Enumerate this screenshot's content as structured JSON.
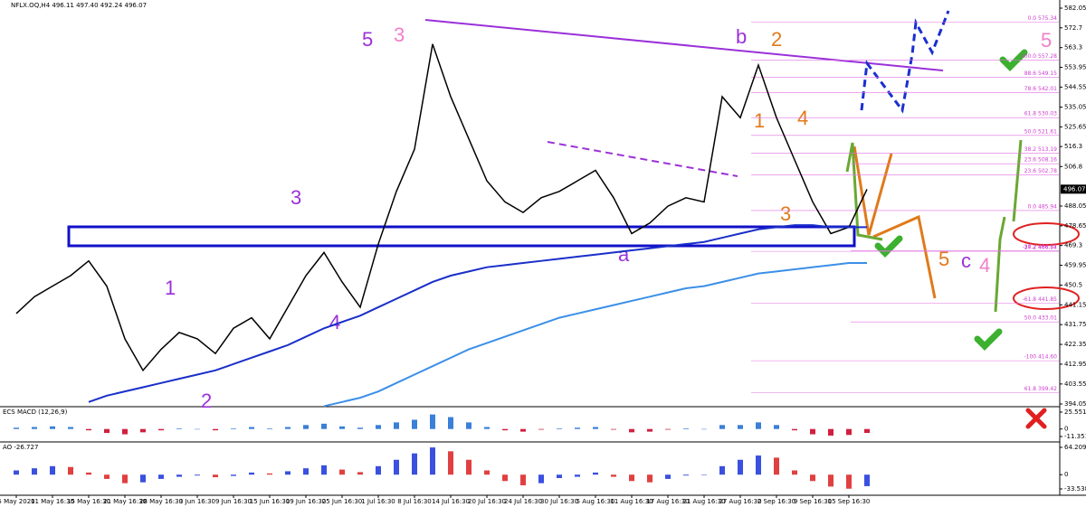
{
  "chart_data": {
    "type": "line",
    "title": "NFLX.OQ,H4  496.11 497.40 492.24 496.07",
    "categories": [
      "5 May 2020",
      null,
      "11 May 16:30",
      null,
      "15 May 16:30",
      null,
      "21 May 16:30",
      null,
      "28 May 16:30",
      null,
      "3 Jun 16:30",
      null,
      "9 Jun 16:30",
      null,
      "15 Jun 16:30",
      null,
      "19 Jun 16:30",
      null,
      "25 Jun 16:30",
      null,
      "1 Jul 16:30",
      null,
      "8 Jul 16:30",
      null,
      "14 Jul 16:30",
      null,
      "20 Jul 16:30",
      null,
      "24 Jul 16:30",
      null,
      "30 Jul 16:30",
      null,
      "5 Aug 16:30",
      null,
      "11 Aug 16:30",
      null,
      "17 Aug 16:30",
      null,
      "21 Aug 16:30",
      null,
      "27 Aug 16:30",
      null,
      "2 Sep 16:30",
      null,
      "9 Sep 16:30",
      null,
      "15 Sep 16:30",
      null
    ],
    "series": [
      {
        "color": "#000000",
        "values": [
          437,
          445,
          450,
          455,
          462,
          450,
          425,
          410,
          420,
          428,
          425,
          418,
          430,
          435,
          425,
          440,
          455,
          466,
          452,
          440,
          470,
          495,
          515,
          565,
          540,
          520,
          500,
          490,
          485,
          492,
          495,
          500,
          505,
          492,
          475,
          480,
          488,
          492,
          490,
          540,
          530,
          555,
          530,
          510,
          490,
          475,
          478,
          496
        ]
      },
      {
        "color": "#1a2fc9",
        "values": [
          null,
          null,
          null,
          null,
          395,
          398,
          400,
          402,
          404,
          406,
          408,
          410,
          413,
          416,
          419,
          422,
          426,
          430,
          433,
          436,
          440,
          444,
          448,
          452,
          455,
          457,
          459,
          460,
          461,
          462,
          463,
          464,
          465,
          466,
          467,
          468,
          469,
          470,
          471,
          473,
          475,
          477,
          478,
          479,
          479,
          478,
          478,
          478
        ]
      },
      {
        "color": "#3b8fe8",
        "values": [
          null,
          null,
          null,
          null,
          null,
          null,
          null,
          null,
          null,
          null,
          null,
          null,
          null,
          null,
          null,
          null,
          null,
          393,
          395,
          397,
          400,
          404,
          408,
          412,
          416,
          420,
          423,
          426,
          429,
          432,
          435,
          437,
          439,
          441,
          443,
          445,
          447,
          449,
          450,
          452,
          454,
          456,
          457,
          458,
          459,
          460,
          461,
          461
        ]
      }
    ],
    "ylim": [
      394.05,
      582.05
    ],
    "yticks": [
      582.05,
      572.7,
      563.3,
      553.95,
      544.55,
      535.05,
      525.65,
      516.3,
      506.8,
      488.05,
      478.65,
      469.3,
      459.95,
      450.5,
      441.15,
      431.75,
      422.35,
      412.95,
      403.55,
      394.05
    ],
    "last_price": 496.07,
    "fib_levels": [
      {
        "value": 575.34,
        "label": "0.0 575.34"
      },
      {
        "value": 557.28,
        "label": "100.0 557.28"
      },
      {
        "value": 549.15,
        "label": "88.6 549.15"
      },
      {
        "value": 542.01,
        "label": "78.6 542.01"
      },
      {
        "value": 530.03,
        "label": "61.8 530.03"
      },
      {
        "value": 521.61,
        "label": "50.0 521.61"
      },
      {
        "value": 513.19,
        "label": "38.2 513.19"
      },
      {
        "value": 502.78,
        "label": "23.6 502.78"
      },
      {
        "value": 485.94,
        "label": "0.0 485.94"
      },
      {
        "value": 466.54,
        "label": "-27.2 466.54"
      },
      {
        "value": 441.85,
        "label": "-61.8 441.85"
      },
      {
        "value": 414.6,
        "label": "-100 414.60"
      },
      {
        "value": 399.42,
        "label": "61.8 399.42"
      }
    ],
    "fib_levels_2": [
      {
        "value": 508.16,
        "label": "23.6 508.16"
      },
      {
        "value": 466.87,
        "label": "38.2 466.87"
      },
      {
        "value": 433.01,
        "label": "50.0 433.01"
      }
    ],
    "wave_labels": [
      "5",
      "3",
      "b",
      "2",
      "1",
      "4",
      "3",
      "3",
      "1",
      "2",
      "4",
      "a",
      "5",
      "c",
      "4",
      "5"
    ],
    "macd": {
      "label": "ECS MACD (12,26,9)",
      "ylim": [
        -11.3512,
        25.5512
      ],
      "yticks": [
        25.5512,
        0,
        -11.3512
      ],
      "values": [
        2,
        3,
        4,
        3,
        -2,
        -6,
        -8,
        -5,
        -2,
        1,
        0,
        -2,
        1,
        3,
        1,
        3,
        6,
        8,
        4,
        2,
        6,
        10,
        14,
        22,
        18,
        10,
        3,
        -2,
        -4,
        -1,
        1,
        2,
        3,
        -1,
        -5,
        -4,
        -1,
        1,
        0,
        6,
        6,
        10,
        6,
        -2,
        -8,
        -10,
        -9,
        -6
      ]
    },
    "ao": {
      "label": "AO -26.727",
      "ylim": [
        -33.538,
        64.209
      ],
      "yticks": [
        64.209,
        0,
        -33.538
      ],
      "values": [
        10,
        15,
        20,
        18,
        5,
        -10,
        -20,
        -18,
        -10,
        -5,
        -2,
        -6,
        -3,
        5,
        3,
        8,
        15,
        22,
        12,
        6,
        20,
        35,
        50,
        64,
        55,
        35,
        10,
        -15,
        -25,
        -20,
        -8,
        -5,
        5,
        -5,
        -15,
        -18,
        -10,
        -2,
        0,
        20,
        35,
        45,
        40,
        10,
        -15,
        -28,
        -33,
        -27
      ]
    }
  }
}
